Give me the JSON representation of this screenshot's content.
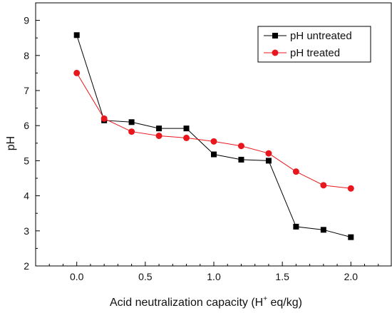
{
  "chart_data": {
    "type": "line",
    "xlabel_main": "Acid neutralization capacity (H",
    "xlabel_sup": "+",
    "xlabel_end": " eq/kg)",
    "ylabel": "pH",
    "xlim": [
      -0.3,
      2.3
    ],
    "ylim": [
      2,
      9.5
    ],
    "x_ticks": [
      0.0,
      0.5,
      1.0,
      1.5,
      2.0
    ],
    "x_tick_labels": [
      "0.0",
      "0.5",
      "1.0",
      "1.5",
      "2.0"
    ],
    "y_ticks": [
      2,
      3,
      4,
      5,
      6,
      7,
      8,
      9
    ],
    "y_tick_labels": [
      "2",
      "3",
      "4",
      "5",
      "6",
      "7",
      "8",
      "9"
    ],
    "grid": false,
    "legend_position": "top-right",
    "x": [
      0.0,
      0.2,
      0.4,
      0.6,
      0.8,
      1.0,
      1.2,
      1.4,
      1.6,
      1.8,
      2.0
    ],
    "series": [
      {
        "name": "pH untreated",
        "color": "#000000",
        "marker": "square",
        "values": [
          8.58,
          6.15,
          6.1,
          5.92,
          5.92,
          5.18,
          5.03,
          5.0,
          3.12,
          3.03,
          2.82
        ]
      },
      {
        "name": "pH treated",
        "color": "#e8171d",
        "marker": "circle",
        "values": [
          7.5,
          6.2,
          5.83,
          5.71,
          5.65,
          5.55,
          5.42,
          5.21,
          4.69,
          4.3,
          4.21
        ]
      }
    ]
  }
}
